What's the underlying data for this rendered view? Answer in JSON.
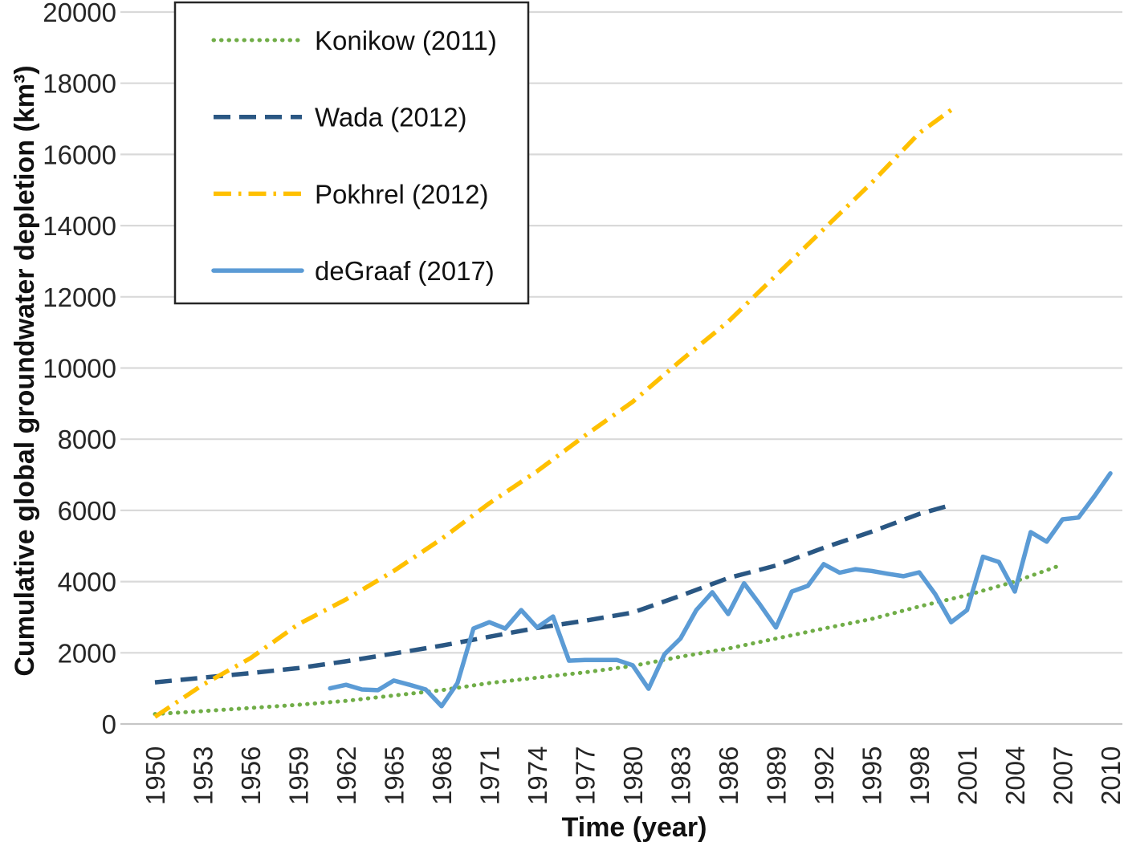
{
  "chart_data": {
    "type": "line",
    "title": "",
    "xlabel": "Time (year)",
    "ylabel": "Cumulative global groundwater depletion (km³)",
    "xlim": [
      1950,
      2010
    ],
    "ylim": [
      0,
      20000
    ],
    "x_ticks": [
      1950,
      1953,
      1956,
      1959,
      1962,
      1965,
      1968,
      1971,
      1974,
      1977,
      1980,
      1983,
      1986,
      1989,
      1992,
      1995,
      1998,
      2001,
      2004,
      2007,
      2010
    ],
    "y_ticks": [
      0,
      2000,
      4000,
      6000,
      8000,
      10000,
      12000,
      14000,
      16000,
      18000,
      20000
    ],
    "grid": "horizontal-only",
    "grid_color": "#d9d9d9",
    "axis_text_color": "#262626",
    "legend_position": "top-left",
    "legend_border_color": "#262626",
    "series": [
      {
        "name": "Konikow (2011)",
        "style": "dotted",
        "color": "#70ad47",
        "points": [
          [
            1950,
            280
          ],
          [
            1953,
            360
          ],
          [
            1956,
            450
          ],
          [
            1959,
            540
          ],
          [
            1962,
            650
          ],
          [
            1965,
            800
          ],
          [
            1968,
            950
          ],
          [
            1971,
            1150
          ],
          [
            1974,
            1300
          ],
          [
            1977,
            1450
          ],
          [
            1980,
            1630
          ],
          [
            1983,
            1890
          ],
          [
            1986,
            2120
          ],
          [
            1989,
            2400
          ],
          [
            1992,
            2680
          ],
          [
            1995,
            2950
          ],
          [
            1998,
            3300
          ],
          [
            2001,
            3620
          ],
          [
            2004,
            4000
          ],
          [
            2007,
            4480
          ]
        ]
      },
      {
        "name": "Wada (2012)",
        "style": "dashed",
        "color": "#2a5783",
        "points": [
          [
            1950,
            1170
          ],
          [
            1953,
            1300
          ],
          [
            1956,
            1430
          ],
          [
            1959,
            1570
          ],
          [
            1962,
            1760
          ],
          [
            1965,
            1980
          ],
          [
            1968,
            2200
          ],
          [
            1971,
            2450
          ],
          [
            1974,
            2700
          ],
          [
            1977,
            2900
          ],
          [
            1980,
            3130
          ],
          [
            1983,
            3600
          ],
          [
            1986,
            4100
          ],
          [
            1989,
            4450
          ],
          [
            1992,
            4950
          ],
          [
            1995,
            5400
          ],
          [
            1998,
            5900
          ],
          [
            2000,
            6150
          ]
        ]
      },
      {
        "name": "Pokhrel (2012)",
        "style": "dashdot",
        "color": "#ffc000",
        "points": [
          [
            1950,
            200
          ],
          [
            1953,
            1100
          ],
          [
            1956,
            1850
          ],
          [
            1959,
            2800
          ],
          [
            1962,
            3500
          ],
          [
            1965,
            4300
          ],
          [
            1968,
            5200
          ],
          [
            1971,
            6200
          ],
          [
            1974,
            7100
          ],
          [
            1977,
            8100
          ],
          [
            1980,
            9050
          ],
          [
            1983,
            10200
          ],
          [
            1986,
            11300
          ],
          [
            1989,
            12600
          ],
          [
            1992,
            13900
          ],
          [
            1995,
            15200
          ],
          [
            1998,
            16600
          ],
          [
            2000,
            17250
          ]
        ]
      },
      {
        "name": "deGraaf (2017)",
        "style": "solid",
        "color": "#5b9bd5",
        "points": [
          [
            1961,
            1000
          ],
          [
            1962,
            1100
          ],
          [
            1963,
            970
          ],
          [
            1964,
            950
          ],
          [
            1965,
            1220
          ],
          [
            1966,
            1100
          ],
          [
            1967,
            970
          ],
          [
            1968,
            500
          ],
          [
            1969,
            1150
          ],
          [
            1970,
            2680
          ],
          [
            1971,
            2860
          ],
          [
            1972,
            2680
          ],
          [
            1973,
            3200
          ],
          [
            1974,
            2710
          ],
          [
            1975,
            3020
          ],
          [
            1976,
            1780
          ],
          [
            1977,
            1800
          ],
          [
            1978,
            1800
          ],
          [
            1979,
            1800
          ],
          [
            1980,
            1650
          ],
          [
            1981,
            990
          ],
          [
            1982,
            1960
          ],
          [
            1983,
            2400
          ],
          [
            1984,
            3200
          ],
          [
            1985,
            3700
          ],
          [
            1986,
            3090
          ],
          [
            1987,
            3950
          ],
          [
            1988,
            3350
          ],
          [
            1989,
            2710
          ],
          [
            1990,
            3720
          ],
          [
            1991,
            3880
          ],
          [
            1992,
            4490
          ],
          [
            1993,
            4250
          ],
          [
            1994,
            4350
          ],
          [
            1995,
            4300
          ],
          [
            1996,
            4220
          ],
          [
            1997,
            4150
          ],
          [
            1998,
            4260
          ],
          [
            1999,
            3650
          ],
          [
            2000,
            2860
          ],
          [
            2001,
            3200
          ],
          [
            2002,
            4700
          ],
          [
            2003,
            4550
          ],
          [
            2004,
            3720
          ],
          [
            2005,
            5390
          ],
          [
            2006,
            5120
          ],
          [
            2007,
            5750
          ],
          [
            2008,
            5800
          ],
          [
            2009,
            6400
          ],
          [
            2010,
            7040
          ]
        ]
      }
    ]
  }
}
